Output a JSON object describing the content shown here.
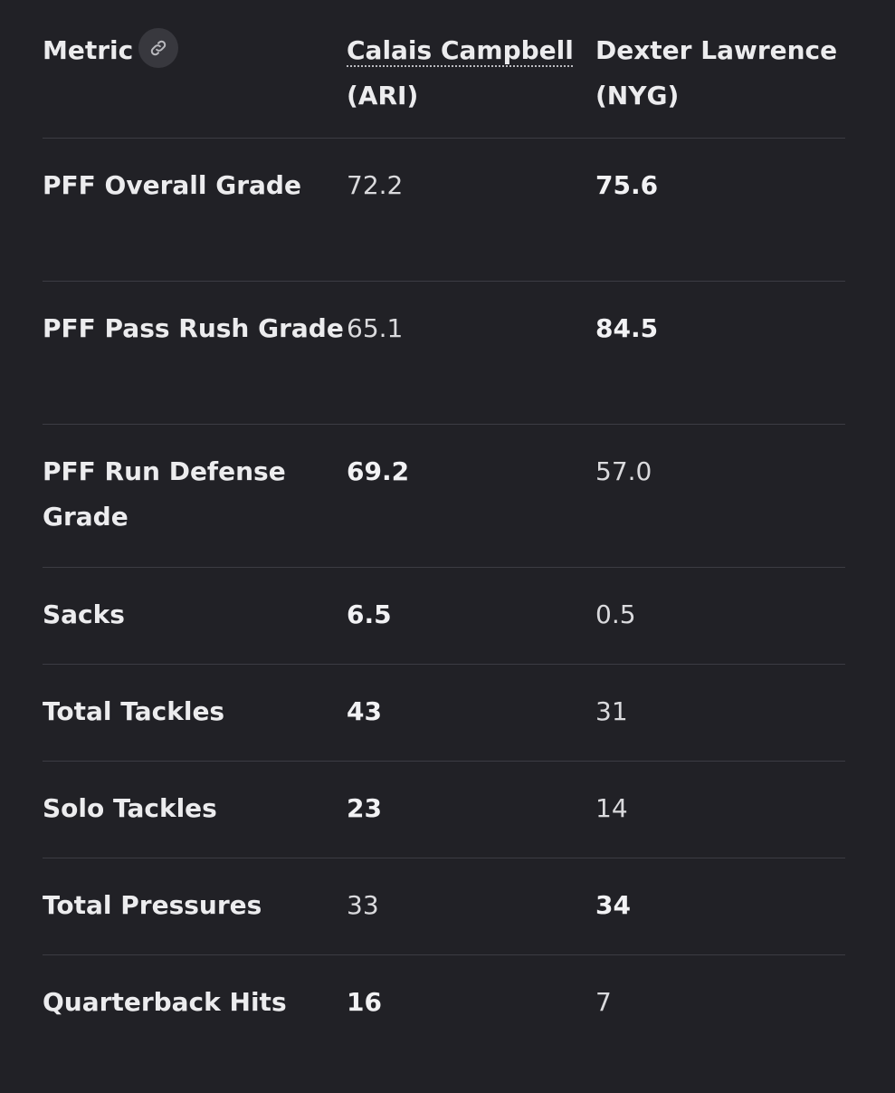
{
  "table": {
    "headers": {
      "metric": "Metric",
      "player_a_name": "Calais Campbell",
      "player_a_team": "(ARI)",
      "player_b": "Dexter Lawrence (NYG)"
    },
    "header_link_icon": "link-icon",
    "rows": [
      {
        "metric": "PFF Overall Grade",
        "a": "72.2",
        "b": "75.6",
        "bold": "b"
      },
      {
        "metric": "PFF Pass Rush Grade",
        "a": "65.1",
        "b": "84.5",
        "bold": "b"
      },
      {
        "metric": "PFF Run Defense Grade",
        "a": "69.2",
        "b": "57.0",
        "bold": "a"
      },
      {
        "metric": "Sacks",
        "a": "6.5",
        "b": "0.5",
        "bold": "a"
      },
      {
        "metric": "Total Tackles",
        "a": "43",
        "b": "31",
        "bold": "a"
      },
      {
        "metric": "Solo Tackles",
        "a": "23",
        "b": "14",
        "bold": "a"
      },
      {
        "metric": "Total Pressures",
        "a": "33",
        "b": "34",
        "bold": "b"
      },
      {
        "metric": "Quarterback Hits",
        "a": "16",
        "b": "7",
        "bold": "a"
      }
    ]
  },
  "colors": {
    "background": "#212126",
    "divider": "#3c3c43",
    "text": "#e6e6e8"
  }
}
